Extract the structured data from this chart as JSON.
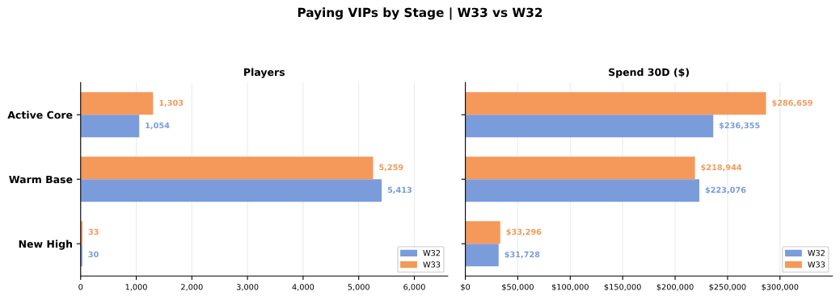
{
  "chart_data": [
    {
      "type": "bar",
      "orientation": "horizontal",
      "title": "Players",
      "annotations": [
        "Paying VIPs by Stage | W33 vs W32"
      ],
      "categories": [
        "Active Core",
        "Warm Base",
        "New High"
      ],
      "series": [
        {
          "name": "W32",
          "color": "#7b9cdb",
          "values": [
            1054,
            5413,
            30
          ],
          "value_labels": [
            "1,054",
            "5,413",
            "30"
          ]
        },
        {
          "name": "W33",
          "color": "#f4995a",
          "values": [
            1303,
            5259,
            33
          ],
          "value_labels": [
            "1,303",
            "5,259",
            "33"
          ]
        }
      ],
      "xlim": [
        0,
        6600
      ],
      "xticks": [
        0,
        {
          "value": 1000,
          "label": "1,000"
        },
        {
          "value": 2000,
          "label": "2,000"
        },
        {
          "value": 3000,
          "label": "3,000"
        },
        {
          "value": 4000,
          "label": "4,000"
        },
        {
          "value": 5000,
          "label": "5,000"
        },
        {
          "value": 6000,
          "label": "6,000"
        }
      ],
      "grid": "x",
      "legend": "bottom right"
    },
    {
      "type": "bar",
      "orientation": "horizontal",
      "title": "Spend 30D ($)",
      "categories": [
        null,
        null,
        null
      ],
      "series": [
        {
          "name": "W32",
          "color": "#7b9cdb",
          "values": [
            236355,
            223076,
            31728
          ],
          "value_labels": [
            "$236,355",
            "$223,076",
            "$31,728"
          ]
        },
        {
          "name": "W33",
          "color": "#f4995a",
          "values": [
            286659,
            218944,
            33296
          ],
          "value_labels": [
            "$286,659",
            "$218,944",
            "$33,296"
          ]
        }
      ],
      "xlim": [
        0,
        350000
      ],
      "xticks": [
        {
          "value": 0,
          "label": "$0"
        },
        {
          "value": 50000,
          "label": "$50,000"
        },
        {
          "value": 100000,
          "label": "$100,000"
        },
        {
          "value": 150000,
          "label": "$150,000"
        },
        {
          "value": 200000,
          "label": "$200,000"
        },
        {
          "value": 250000,
          "label": "$250,000"
        },
        {
          "value": 300000,
          "label": "$300,000"
        }
      ],
      "grid": "x",
      "legend": "bottom right"
    }
  ]
}
